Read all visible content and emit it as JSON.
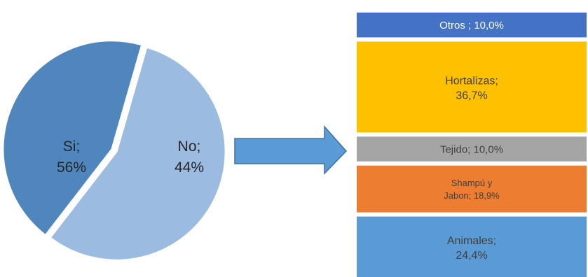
{
  "chart_data": [
    {
      "type": "pie",
      "slices": [
        {
          "label": "No",
          "value_label": "44%",
          "value": 44,
          "color": "#4e86bd"
        },
        {
          "label": "Si",
          "value_label": "56%",
          "value": 56,
          "color": "#9bbbe0"
        }
      ],
      "label_sep": ";"
    },
    {
      "type": "bar",
      "orientation": "stacked-vertical",
      "segments": [
        {
          "line1": "Otros ; 10,0%",
          "line2": "",
          "value": 10.0,
          "color": "#4472c4",
          "text_color": "#ffffff"
        },
        {
          "line1": "Hortalizas;",
          "line2": "36,7%",
          "value": 36.7,
          "color": "#ffc000",
          "text_color": "#404040"
        },
        {
          "line1": "Tejido; 10,0%",
          "line2": "",
          "value": 10.0,
          "color": "#a5a5a5",
          "text_color": "#404040"
        },
        {
          "line1": "Shampú y",
          "line2": "Jabon; 18,9%",
          "value": 18.9,
          "color": "#ed7d31",
          "text_color": "#404040"
        },
        {
          "line1": "Animales;",
          "line2": "24,4%",
          "value": 24.4,
          "color": "#5b9bd5",
          "text_color": "#404040"
        }
      ]
    }
  ],
  "arrow": {
    "color": "#5b9bd5",
    "stroke": "#41719c",
    "icon": "right-arrow-icon"
  }
}
